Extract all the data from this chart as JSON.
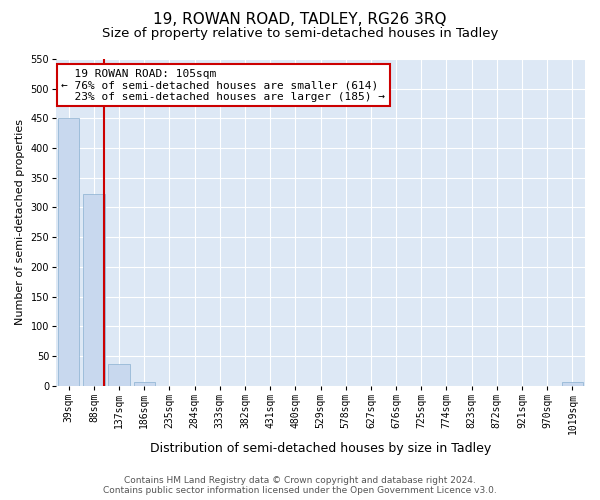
{
  "title": "19, ROWAN ROAD, TADLEY, RG26 3RQ",
  "subtitle": "Size of property relative to semi-detached houses in Tadley",
  "xlabel": "Distribution of semi-detached houses by size in Tadley",
  "ylabel": "Number of semi-detached properties",
  "footer_line1": "Contains HM Land Registry data © Crown copyright and database right 2024.",
  "footer_line2": "Contains public sector information licensed under the Open Government Licence v3.0.",
  "bin_labels": [
    "39sqm",
    "88sqm",
    "137sqm",
    "186sqm",
    "235sqm",
    "284sqm",
    "333sqm",
    "382sqm",
    "431sqm",
    "480sqm",
    "529sqm",
    "578sqm",
    "627sqm",
    "676sqm",
    "725sqm",
    "774sqm",
    "823sqm",
    "872sqm",
    "921sqm",
    "970sqm",
    "1019sqm"
  ],
  "bar_values": [
    450,
    323,
    37,
    6,
    0,
    0,
    0,
    0,
    0,
    0,
    0,
    0,
    0,
    0,
    0,
    0,
    0,
    0,
    0,
    0,
    6
  ],
  "bar_color": "#c8d8ee",
  "bar_edge_color": "#8ab0d0",
  "property_label": "19 ROWAN ROAD: 105sqm",
  "pct_smaller": 76,
  "n_smaller": 614,
  "pct_larger": 23,
  "n_larger": 185,
  "vline_color": "#cc0000",
  "annotation_box_color": "#cc0000",
  "ylim": [
    0,
    550
  ],
  "yticks": [
    0,
    50,
    100,
    150,
    200,
    250,
    300,
    350,
    400,
    450,
    500,
    550
  ],
  "fig_bg_color": "#ffffff",
  "plot_bg_color": "#dde8f5",
  "title_fontsize": 11,
  "subtitle_fontsize": 9.5,
  "xlabel_fontsize": 9,
  "ylabel_fontsize": 8,
  "tick_fontsize": 7,
  "footer_fontsize": 6.5,
  "annotation_fontsize": 8
}
